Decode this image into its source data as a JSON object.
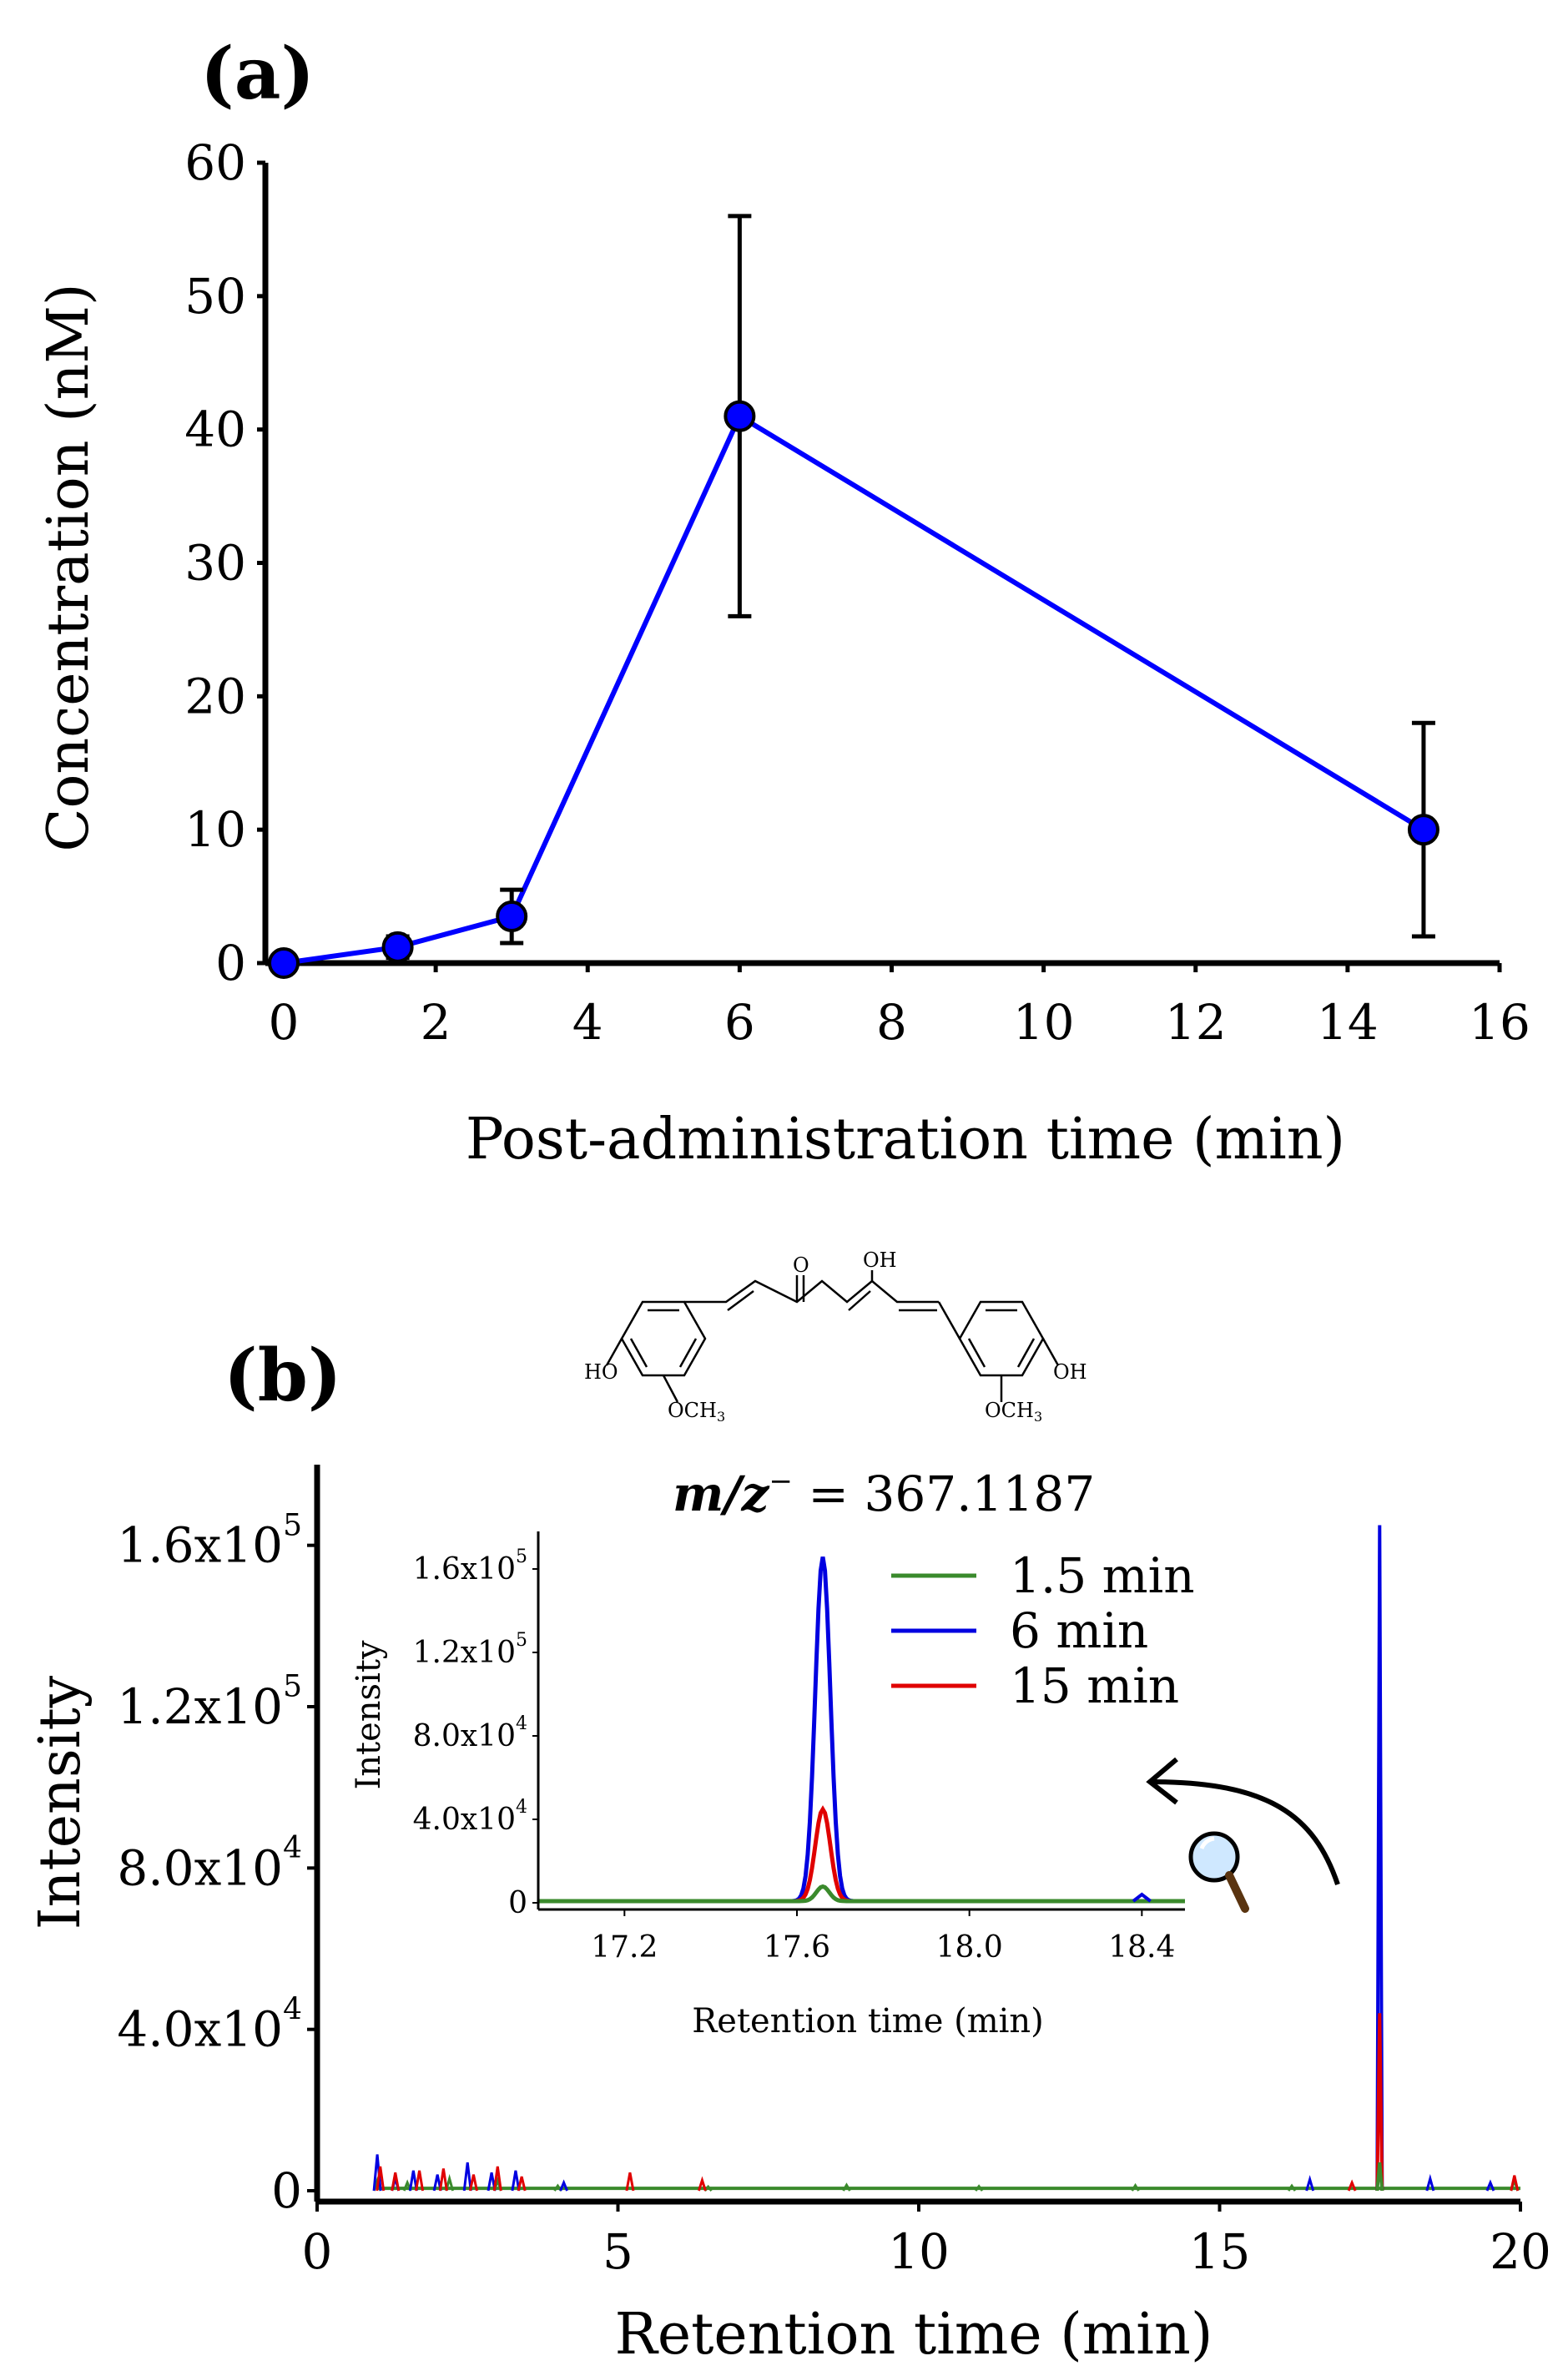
{
  "panels": {
    "a": {
      "label": "(a)",
      "chart_data": {
        "type": "line",
        "xlabel": "Post-administration time (min)",
        "ylabel": "Concentration (nM)",
        "xlim": [
          0,
          16
        ],
        "ylim": [
          0,
          60
        ],
        "xticks": [
          0,
          2,
          4,
          6,
          8,
          10,
          12,
          14,
          16
        ],
        "yticks": [
          0,
          10,
          20,
          30,
          40,
          50,
          60
        ],
        "series": [
          {
            "name": "Concentration",
            "color": "#0000ff",
            "x": [
              0,
              1.5,
              3,
              6,
              15
            ],
            "y": [
              0,
              1.2,
              3.5,
              41,
              10
            ],
            "err": [
              0,
              0.8,
              2,
              15,
              8
            ]
          }
        ]
      }
    },
    "b": {
      "label": "(b)",
      "mz": {
        "prefix": "m/z",
        "sup": "−",
        "value": " = 367.1187"
      },
      "chem": {
        "o": "O",
        "oh": "OH",
        "ho": "HO",
        "och3_left": "OCH",
        "och3_right": "OCH",
        "sub3": "3",
        "oh_right": "OH"
      },
      "chart_data": {
        "type": "line",
        "xlabel": "Retention time (min)",
        "ylabel": "Intensity",
        "xlim": [
          0,
          20
        ],
        "ylim": [
          0,
          180000
        ],
        "xticks": [
          0,
          5,
          10,
          15,
          20
        ],
        "yticks": [
          {
            "value": 0,
            "base": "0",
            "exp": ""
          },
          {
            "value": 40000,
            "base": "4.0x10",
            "exp": "4"
          },
          {
            "value": 80000,
            "base": "8.0x10",
            "exp": "4"
          },
          {
            "value": 120000,
            "base": "1.2x10",
            "exp": "5"
          },
          {
            "value": 160000,
            "base": "1.6x10",
            "exp": "5"
          }
        ],
        "series": [
          {
            "name": "1.5 min",
            "color": "#3a8a2c",
            "peak_x": 17.66,
            "peak": 7000,
            "width": 0.03
          },
          {
            "name": "6 min",
            "color": "#0000e0",
            "peak_x": 17.66,
            "peak": 165000,
            "width": 0.035
          },
          {
            "name": "15 min",
            "color": "#e00000",
            "peak_x": 17.66,
            "peak": 44000,
            "width": 0.035
          }
        ],
        "noise_spikes": {
          "green": [
            [
              1.0,
              2500
            ],
            [
              1.5,
              2000
            ],
            [
              2.2,
              3000
            ],
            [
              3.0,
              2500
            ],
            [
              4.0,
              1200
            ],
            [
              6.5,
              1000
            ],
            [
              8.8,
              1400
            ],
            [
              11.0,
              1100
            ],
            [
              13.6,
              1300
            ],
            [
              16.2,
              1200
            ],
            [
              19.9,
              2500
            ]
          ],
          "blue": [
            [
              1.0,
              9000
            ],
            [
              1.3,
              3000
            ],
            [
              1.6,
              5000
            ],
            [
              2.0,
              4000
            ],
            [
              2.5,
              7000
            ],
            [
              2.9,
              4500
            ],
            [
              3.3,
              5000
            ],
            [
              4.1,
              2000
            ],
            [
              16.5,
              2800
            ],
            [
              18.5,
              3000
            ],
            [
              19.5,
              2000
            ]
          ],
          "red": [
            [
              1.05,
              6000
            ],
            [
              1.3,
              4500
            ],
            [
              1.7,
              5000
            ],
            [
              2.1,
              5500
            ],
            [
              2.6,
              4000
            ],
            [
              3.0,
              6000
            ],
            [
              3.4,
              3500
            ],
            [
              5.2,
              4500
            ],
            [
              6.4,
              2600
            ],
            [
              17.2,
              2000
            ],
            [
              19.9,
              3800
            ]
          ]
        },
        "inset": {
          "xlabel": "Retention time (min)",
          "ylabel": "Intensity",
          "xlim": [
            17.0,
            18.5
          ],
          "ylim": [
            0,
            180000
          ],
          "xticks": [
            17.2,
            17.6,
            18.0,
            18.4
          ],
          "yticks": [
            {
              "value": 0,
              "base": "0",
              "exp": ""
            },
            {
              "value": 40000,
              "base": "4.0x10",
              "exp": "4"
            },
            {
              "value": 80000,
              "base": "8.0x10",
              "exp": "4"
            },
            {
              "value": 120000,
              "base": "1.2x10",
              "exp": "5"
            },
            {
              "value": 160000,
              "base": "1.6x10",
              "exp": "5"
            }
          ]
        },
        "legend": [
          "1.5 min",
          "6 min",
          "15 min"
        ]
      }
    }
  },
  "icons": {
    "zoom": "magnifier-icon",
    "arrow": "curved-arrow-icon"
  }
}
